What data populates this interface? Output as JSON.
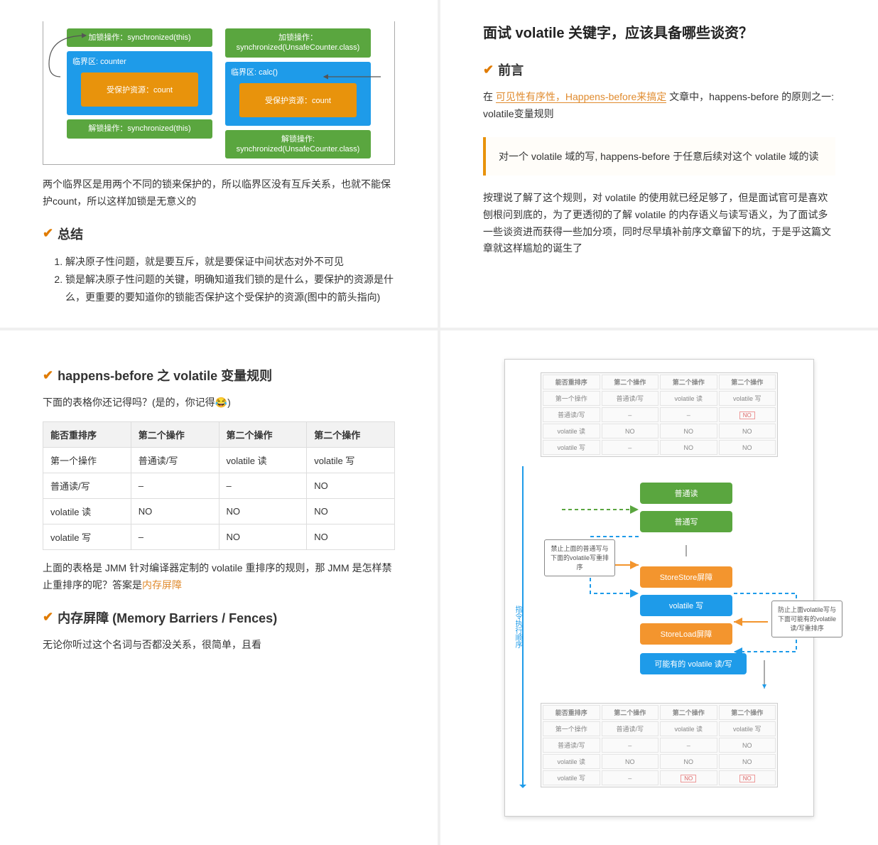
{
  "panel_tl": {
    "sync_left": {
      "lock": "加锁操作：synchronized(this)",
      "critical_label": "临界区: counter",
      "protected": "受保护资源：count",
      "unlock": "解锁操作：synchronized(this)"
    },
    "sync_right": {
      "lock": "加锁操作：\nsynchronized(UnsafeCounter.class)",
      "critical_label": "临界区: calc()",
      "protected": "受保护资源：count",
      "unlock": "解锁操作:\nsynchronized(UnsafeCounter.class)"
    },
    "para1": "两个临界区是用两个不同的锁来保护的，所以临界区没有互斥关系，也就不能保护count，所以这样加锁是无意义的",
    "section": "总结",
    "list": [
      "解决原子性问题，就是要互斥，就是要保证中间状态对外不可见",
      "锁是解决原子性问题的关键，明确知道我们锁的是什么，要保护的资源是什么，更重要的要知道你的锁能否保护这个受保护的资源(图中的箭头指向)"
    ]
  },
  "panel_tr": {
    "title": "面试 volatile 关键字，应该具备哪些谈资？",
    "section": "前言",
    "para_before_link": "在 ",
    "link_text": "可见性有序性，Happens-before来搞定",
    "para_after_link": " 文章中，happens-before 的原则之一: volatile变量规则",
    "quote": "对一个 volatile 域的写, happens-before 于任意后续对这个 volatile 域的读",
    "para2": "按理说了解了这个规则，对 volatile 的使用就已经足够了，但是面试官可是喜欢刨根问到底的，为了更透彻的了解 volatile 的内存语义与读写语义，为了面试多一些谈资进而获得一些加分项，同时尽早填补前序文章留下的坑，于是乎这篇文章就这样尴尬的诞生了"
  },
  "panel_bl": {
    "section1": "happens-before 之 volatile 变量规则",
    "para1_a": "下面的表格你还记得吗？(是的，你记得",
    "para1_b": ")",
    "table": {
      "headers": [
        "能否重排序",
        "第二个操作",
        "第二个操作",
        "第二个操作"
      ],
      "rows": [
        [
          "第一个操作",
          "普通读/写",
          "volatile 读",
          "volatile 写"
        ],
        [
          "普通读/写",
          "–",
          "–",
          "NO"
        ],
        [
          "volatile 读",
          "NO",
          "NO",
          "NO"
        ],
        [
          "volatile 写",
          "–",
          "NO",
          "NO"
        ]
      ]
    },
    "para2_a": "上面的表格是 JMM 针对编译器定制的 volatile 重排序的规则，那 JMM 是怎样禁止重排序的呢？答案是",
    "para2_b": "内存屏障",
    "section2": "内存屏障 (Memory Barriers / Fences)",
    "para3": "无论你听过这个名词与否都没关系，很简单，且看"
  },
  "panel_br": {
    "mini_table": {
      "headers": [
        "能否重排序",
        "第二个操作",
        "第二个操作",
        "第二个操作"
      ],
      "rows": [
        [
          "第一个操作",
          "普通读/写",
          "volatile 读",
          "volatile 写"
        ],
        [
          "普通读/写",
          "–",
          "–",
          "NO"
        ],
        [
          "volatile 读",
          "NO",
          "NO",
          "NO"
        ],
        [
          "volatile 写",
          "–",
          "NO",
          "NO"
        ]
      ]
    },
    "seq_label": "指令执行顺序",
    "nodes": {
      "read": "普通读",
      "write": "普通写",
      "storestore": "StoreStore屏障",
      "vwrite": "volatile 写",
      "storeload": "StoreLoad屏障",
      "maybe": "可能有的 volatile 读/写"
    },
    "sidebox1": "禁止上面的普通写与下面的volatile写重排序",
    "sidebox2": "防止上面volatile写与下面可能有的volatile读/写重排序"
  },
  "colors": {
    "green": "#5aa63f",
    "blue": "#1e9be9",
    "orange": "#e8930c",
    "accent": "#e08b2e"
  }
}
